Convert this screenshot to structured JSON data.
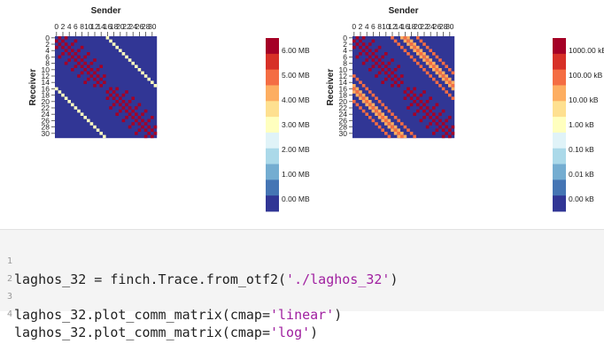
{
  "chart_data": [
    {
      "type": "heatmap",
      "scale": "linear",
      "title": "Sender",
      "ylabel": "Receiver",
      "x_ticks": [
        "0",
        "2",
        "4",
        "6",
        "8",
        "10",
        "12",
        "14",
        "16",
        "18",
        "20",
        "22",
        "24",
        "26",
        "28",
        "30"
      ],
      "y_ticks": [
        "0",
        "2",
        "4",
        "6",
        "8",
        "10",
        "12",
        "14",
        "16",
        "18",
        "20",
        "22",
        "24",
        "26",
        "28",
        "30"
      ],
      "colorbar_labels": [
        "0.00 MB",
        "1.00 MB",
        "2.00 MB",
        "3.00 MB",
        "4.00 MB",
        "5.00 MB",
        "6.00 MB"
      ],
      "colorbar_colors": [
        "#313695",
        "#4575b4",
        "#74add1",
        "#abd9e9",
        "#e0f3f8",
        "#ffffbf",
        "#fee090",
        "#fdae61",
        "#f46d43",
        "#d73027",
        "#a50026"
      ],
      "background_color": "#313695",
      "cells": [
        {
          "pattern": "checkerboard-blocks",
          "value_mb": 6.0,
          "color": "#a50026"
        },
        {
          "pattern": "offset-16-diagonal",
          "value_mb": 3.0,
          "color": "#ffffbf"
        }
      ]
    },
    {
      "type": "heatmap",
      "scale": "log",
      "title": "Sender",
      "ylabel": "Receiver",
      "x_ticks": [
        "0",
        "2",
        "4",
        "6",
        "8",
        "10",
        "12",
        "14",
        "16",
        "18",
        "20",
        "22",
        "24",
        "26",
        "28",
        "30"
      ],
      "y_ticks": [
        "0",
        "2",
        "4",
        "6",
        "8",
        "10",
        "12",
        "14",
        "16",
        "18",
        "20",
        "22",
        "24",
        "26",
        "28",
        "30"
      ],
      "colorbar_labels": [
        "0.00 kB",
        "0.01 kB",
        "0.10 kB",
        "1.00 kB",
        "10.00 kB",
        "100.00 kB",
        "1000.00 kB"
      ],
      "colorbar_colors": [
        "#313695",
        "#4575b4",
        "#74add1",
        "#abd9e9",
        "#e0f3f8",
        "#ffffbf",
        "#fee090",
        "#fdae61",
        "#f46d43",
        "#d73027",
        "#a50026"
      ],
      "background_color": "#313695",
      "cells": [
        {
          "pattern": "checkerboard-blocks",
          "value_kb": 1000.0,
          "color": "#a50026"
        },
        {
          "pattern": "offset-diagonals",
          "value_kb": 100.0,
          "color": "#f46d43"
        },
        {
          "pattern": "offset-diagonals-secondary",
          "value_kb": 10.0,
          "color": "#fdae61"
        }
      ]
    }
  ],
  "code": {
    "line_numbers": [
      "1",
      "2",
      "3",
      "4"
    ],
    "lines": [
      {
        "pre": "laghos_32 = finch.Trace.from_otf2(",
        "str": "'./laghos_32'",
        "post": ")"
      },
      {
        "pre": "",
        "str": "",
        "post": ""
      },
      {
        "pre": "laghos_32.plot_comm_matrix(cmap=",
        "str": "'linear'",
        "post": ")"
      },
      {
        "pre": "laghos_32.plot_comm_matrix(cmap=",
        "str": "'log'",
        "post": ")"
      }
    ]
  }
}
